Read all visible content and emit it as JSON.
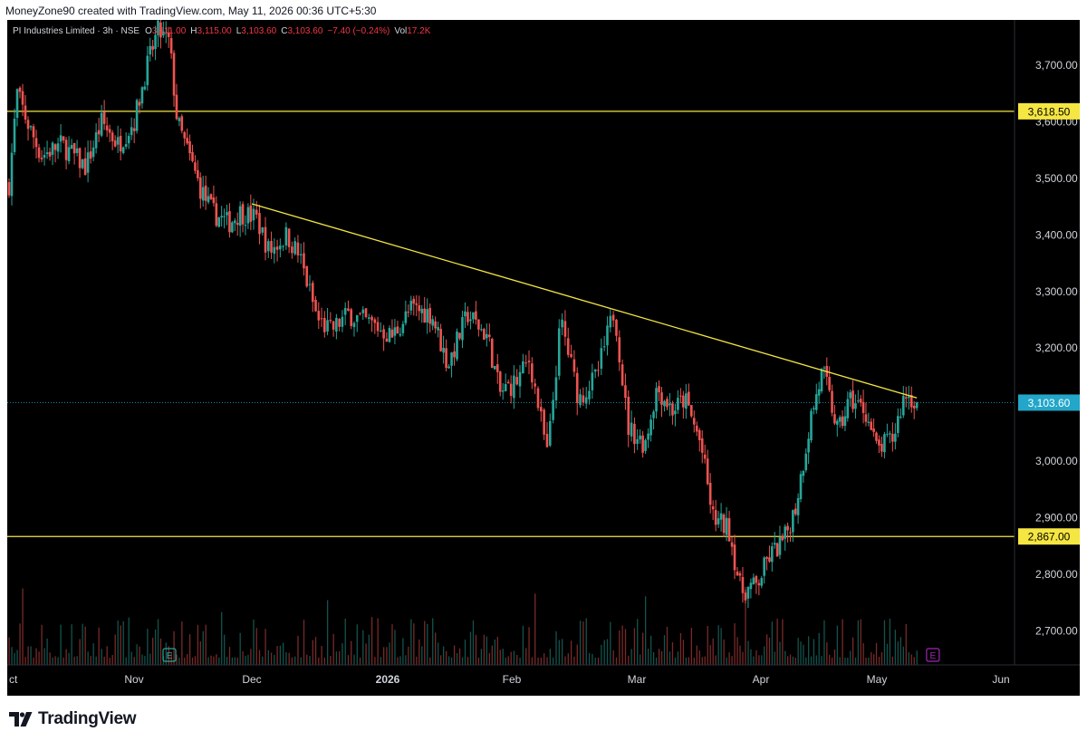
{
  "caption": "MoneyZone90 created with TradingView.com, May 11, 2026 00:36 UTC+5:30",
  "legend": {
    "symbol": "PI Industries Limited · 3h · NSE",
    "open_key": "O",
    "open": "3,111.00",
    "high_key": "H",
    "high": "3,115.00",
    "low_key": "L",
    "low": "3,103.60",
    "close_key": "C",
    "close": "3,103.60",
    "change": "−7.40 (−0.24%)",
    "vol_key": "Vol",
    "vol": "17.2K"
  },
  "brand": "TradingView",
  "colors": {
    "background": "#000000",
    "up": "#26a69a",
    "down": "#ef5350",
    "hline": "#f5e642",
    "trendline": "#f5e642",
    "last_price_label": "#22a6c9",
    "earnings": "#9c27b0"
  },
  "chart_data": {
    "type": "candlestick",
    "title": "PI Industries Limited",
    "interval": "3h",
    "exchange": "NSE",
    "price_axis": {
      "ylim": [
        2640,
        3780
      ],
      "ticks": [
        "2,700.00",
        "2,800.00",
        "2,900.00",
        "3,000.00",
        "3,100.00",
        "3,200.00",
        "3,300.00",
        "3,400.00",
        "3,500.00",
        "3,600.00",
        "3,700.00"
      ]
    },
    "time_axis": {
      "labels": [
        "ct",
        "Nov",
        "Dec",
        "2026",
        "Feb",
        "Mar",
        "Apr",
        "May",
        "Jun"
      ]
    },
    "horizontal_lines": [
      {
        "value": 3618.5,
        "label": "3,618.50"
      },
      {
        "value": 2867.0,
        "label": "2,867.00"
      }
    ],
    "last_price": {
      "value": 3103.6,
      "label": "3,103.60"
    },
    "trendline": {
      "start": {
        "date": "2025-12-01",
        "price": 3455
      },
      "end": {
        "date": "2026-05-11",
        "price": 3112
      }
    },
    "earnings_markers": [
      "2025-11-10",
      "2026-05-15"
    ],
    "earnings_label": "E",
    "price_path": [
      [
        "2025-10-01",
        3490
      ],
      [
        "2025-10-03",
        3650
      ],
      [
        "2025-10-06",
        3590
      ],
      [
        "2025-10-09",
        3540
      ],
      [
        "2025-10-14",
        3560
      ],
      [
        "2025-10-20",
        3520
      ],
      [
        "2025-10-24",
        3600
      ],
      [
        "2025-10-28",
        3560
      ],
      [
        "2025-11-01",
        3600
      ],
      [
        "2025-11-04",
        3690
      ],
      [
        "2025-11-07",
        3760
      ],
      [
        "2025-11-10",
        3740
      ],
      [
        "2025-11-12",
        3600
      ],
      [
        "2025-11-14",
        3560
      ],
      [
        "2025-11-18",
        3480
      ],
      [
        "2025-11-21",
        3440
      ],
      [
        "2025-11-25",
        3420
      ],
      [
        "2025-11-28",
        3440
      ],
      [
        "2025-12-02",
        3430
      ],
      [
        "2025-12-05",
        3370
      ],
      [
        "2025-12-09",
        3400
      ],
      [
        "2025-12-12",
        3360
      ],
      [
        "2025-12-16",
        3250
      ],
      [
        "2025-12-19",
        3230
      ],
      [
        "2025-12-23",
        3260
      ],
      [
        "2025-12-29",
        3240
      ],
      [
        "2026-01-02",
        3220
      ],
      [
        "2026-01-07",
        3270
      ],
      [
        "2026-01-12",
        3260
      ],
      [
        "2026-01-16",
        3170
      ],
      [
        "2026-01-21",
        3260
      ],
      [
        "2026-01-26",
        3220
      ],
      [
        "2026-01-29",
        3120
      ],
      [
        "2026-02-02",
        3140
      ],
      [
        "2026-02-05",
        3180
      ],
      [
        "2026-02-09",
        3010
      ],
      [
        "2026-02-12",
        3250
      ],
      [
        "2026-02-16",
        3110
      ],
      [
        "2026-02-20",
        3150
      ],
      [
        "2026-02-24",
        3270
      ],
      [
        "2026-02-27",
        3060
      ],
      [
        "2026-03-03",
        3030
      ],
      [
        "2026-03-06",
        3130
      ],
      [
        "2026-03-10",
        3090
      ],
      [
        "2026-03-13",
        3110
      ],
      [
        "2026-03-17",
        3030
      ],
      [
        "2026-03-20",
        2900
      ],
      [
        "2026-03-24",
        2880
      ],
      [
        "2026-03-27",
        2770
      ],
      [
        "2026-03-31",
        2780
      ],
      [
        "2026-04-03",
        2830
      ],
      [
        "2026-04-07",
        2860
      ],
      [
        "2026-04-10",
        2920
      ],
      [
        "2026-04-14",
        3080
      ],
      [
        "2026-04-17",
        3160
      ],
      [
        "2026-04-21",
        3050
      ],
      [
        "2026-04-24",
        3110
      ],
      [
        "2026-04-28",
        3090
      ],
      [
        "2026-05-01",
        3020
      ],
      [
        "2026-05-05",
        3040
      ],
      [
        "2026-05-08",
        3120
      ],
      [
        "2026-05-11",
        3103.6
      ]
    ]
  }
}
